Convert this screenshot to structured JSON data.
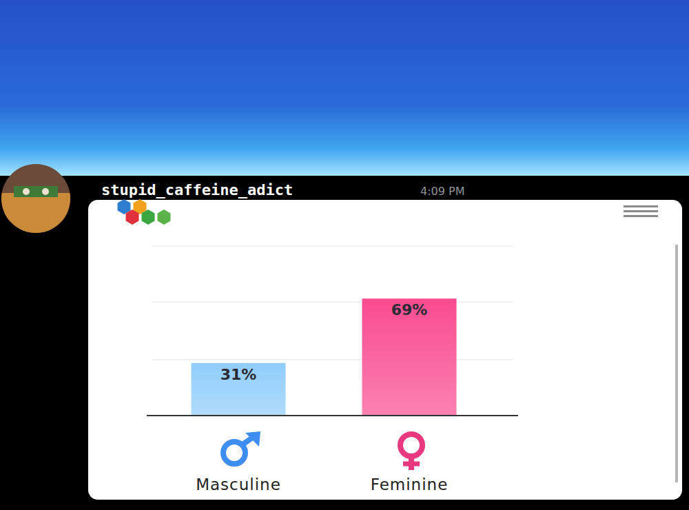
{
  "message": {
    "username": "stupid_caffeine_adict",
    "time": "4:09 PM"
  },
  "chart_data": {
    "type": "bar",
    "categories": [
      "Masculine",
      "Feminine"
    ],
    "values": [
      31,
      69
    ],
    "value_labels": [
      "31%",
      "69%"
    ],
    "colors": [
      "#90cdfb",
      "#f94b91"
    ],
    "ylim": [
      0,
      100
    ],
    "yticks": [
      0,
      33,
      67,
      100
    ],
    "grid": true,
    "data_labels": true,
    "tick_labels": "x"
  }
}
